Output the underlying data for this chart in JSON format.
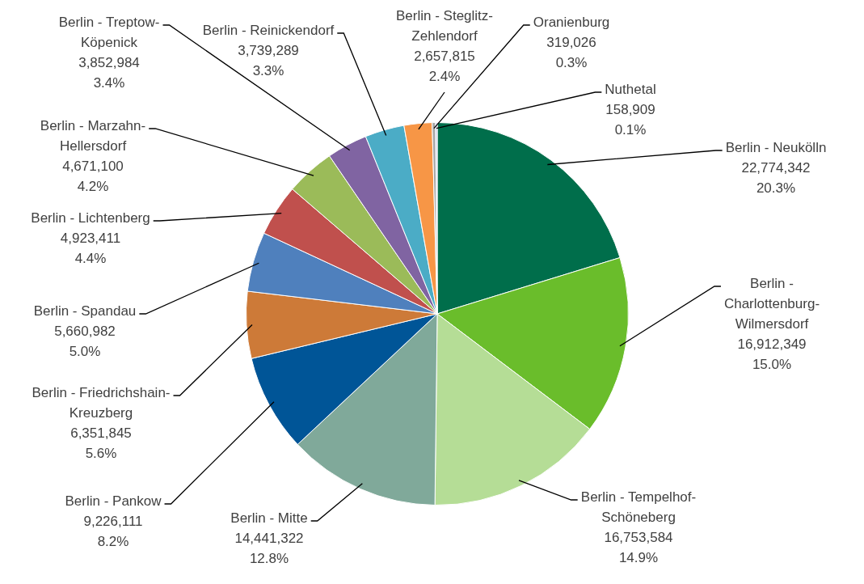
{
  "chart_data": {
    "type": "pie",
    "categories": [
      "Berlin - Neukölln",
      "Berlin - Charlottenburg-Wilmersdorf",
      "Berlin - Tempelhof-Schöneberg",
      "Berlin - Mitte",
      "Berlin - Pankow",
      "Berlin - Friedrichshain-Kreuzberg",
      "Berlin - Spandau",
      "Berlin - Lichtenberg",
      "Berlin - Marzahn-Hellersdorf",
      "Berlin - Treptow-Köpenick",
      "Berlin - Reinickendorf",
      "Berlin - Steglitz-Zehlendorf",
      "Oranienburg",
      "Nuthetal"
    ],
    "values": [
      22774342,
      16912349,
      16753584,
      14441322,
      9226111,
      6351845,
      5660982,
      4923411,
      4671100,
      3852984,
      3739289,
      2657815,
      319026,
      158909
    ],
    "colors": [
      "#006e4b",
      "#6abd2b",
      "#b5dd96",
      "#80a99a",
      "#005597",
      "#cd7a38",
      "#4f80bd",
      "#c0504d",
      "#9bbb59",
      "#8064a2",
      "#4bacc6",
      "#f79646",
      "#a5a5a5",
      "#c5c5e8"
    ],
    "value_labels": [
      "22,774,342\n20.3%",
      "16,912,349\n15.0%",
      "16,753,584\n14.9%",
      "14,441,322\n12.8%",
      "9,226,111\n8.2%",
      "6,351,845\n5.6%",
      "5,660,982\n5.0%",
      "4,923,411\n4.4%",
      "4,671,100\n4.2%",
      "3,852,984\n3.4%",
      "3,739,289\n3.3%",
      "2,657,815\n2.4%",
      "319,026\n0.3%",
      "158,909\n0.1%"
    ],
    "legend": false
  }
}
